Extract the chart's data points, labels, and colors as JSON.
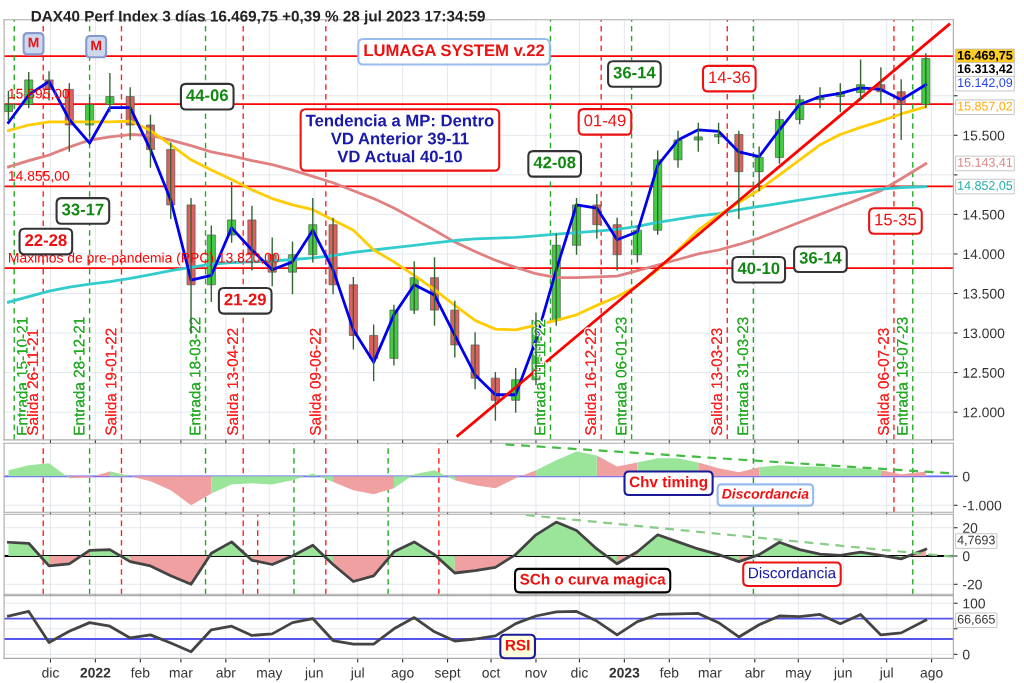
{
  "chart_data": [
    {
      "type": "candlestick",
      "title": "DAX40 Perf Index 3 días 16.469,75 +0,39 % 28 jul 2023 17:34:59",
      "x": [
        "2021-11-02",
        "2021-11-16",
        "2021-11-30",
        "2021-12-14",
        "2021-12-28",
        "2022-01-11",
        "2022-01-25",
        "2022-02-08",
        "2022-02-22",
        "2022-03-08",
        "2022-03-22",
        "2022-04-05",
        "2022-04-19",
        "2022-05-03",
        "2022-05-17",
        "2022-05-31",
        "2022-06-14",
        "2022-06-28",
        "2022-07-12",
        "2022-07-26",
        "2022-08-09",
        "2022-08-23",
        "2022-09-06",
        "2022-09-20",
        "2022-10-04",
        "2022-10-18",
        "2022-11-01",
        "2022-11-15",
        "2022-11-29",
        "2022-12-13",
        "2022-12-27",
        "2023-01-10",
        "2023-01-24",
        "2023-02-07",
        "2023-02-21",
        "2023-03-07",
        "2023-03-21",
        "2023-04-04",
        "2023-04-18",
        "2023-05-02",
        "2023-05-16",
        "2023-05-30",
        "2023-06-13",
        "2023-06-27",
        "2023-07-11",
        "2023-07-28"
      ],
      "ohlc": [
        [
          15800,
          16050,
          15700,
          15890
        ],
        [
          15890,
          16290,
          15850,
          16200
        ],
        [
          16200,
          16300,
          15950,
          16080
        ],
        [
          16080,
          16150,
          15300,
          15630
        ],
        [
          15630,
          15980,
          15500,
          15890
        ],
        [
          15890,
          16280,
          15800,
          15990
        ],
        [
          15990,
          16100,
          15450,
          15630
        ],
        [
          15630,
          15750,
          15100,
          15320
        ],
        [
          15320,
          15400,
          14450,
          14620
        ],
        [
          14620,
          14700,
          13000,
          13610
        ],
        [
          13610,
          14350,
          13400,
          14240
        ],
        [
          14240,
          14900,
          14150,
          14430
        ],
        [
          14430,
          14600,
          13800,
          13990
        ],
        [
          13990,
          14200,
          13600,
          13770
        ],
        [
          13770,
          14150,
          13500,
          13990
        ],
        [
          13990,
          14700,
          13900,
          14370
        ],
        [
          14370,
          14450,
          13500,
          13610
        ],
        [
          13610,
          13700,
          12800,
          12970
        ],
        [
          12970,
          13100,
          12400,
          12680
        ],
        [
          12680,
          13350,
          12600,
          13290
        ],
        [
          13290,
          13900,
          13250,
          13700
        ],
        [
          13700,
          13950,
          13100,
          13290
        ],
        [
          13290,
          13400,
          12700,
          12850
        ],
        [
          12850,
          13000,
          12300,
          12430
        ],
        [
          12430,
          12500,
          11900,
          12150
        ],
        [
          12150,
          12550,
          12000,
          12410
        ],
        [
          12410,
          13250,
          12350,
          13160
        ],
        [
          13160,
          14250,
          13100,
          14110
        ],
        [
          14110,
          14700,
          14000,
          14620
        ],
        [
          14620,
          14750,
          14200,
          14370
        ],
        [
          14370,
          14450,
          13800,
          13990
        ],
        [
          13990,
          14350,
          13900,
          14300
        ],
        [
          14300,
          15300,
          14250,
          15190
        ],
        [
          15190,
          15550,
          15100,
          15440
        ],
        [
          15440,
          15650,
          15300,
          15480
        ],
        [
          15480,
          15650,
          15400,
          15510
        ],
        [
          15510,
          15550,
          14450,
          15040
        ],
        [
          15040,
          15350,
          14800,
          15220
        ],
        [
          15220,
          15800,
          15150,
          15700
        ],
        [
          15700,
          16000,
          15650,
          15950
        ],
        [
          15950,
          16100,
          15850,
          15990
        ],
        [
          15990,
          16150,
          15800,
          16040
        ],
        [
          16040,
          16450,
          15950,
          16140
        ],
        [
          16140,
          16350,
          15900,
          16050
        ],
        [
          16050,
          16200,
          15450,
          15890
        ],
        [
          15890,
          16530,
          15850,
          16470
        ]
      ],
      "colors": [
        "#44cc44",
        "#44cc44",
        "#e06060",
        "#e06060",
        "#44cc44",
        "#44cc44",
        "#e06060",
        "#e06060",
        "#e06060",
        "#e06060",
        "#44cc44",
        "#44cc44",
        "#e06060",
        "#e06060",
        "#44cc44",
        "#44cc44",
        "#e06060",
        "#e06060",
        "#e06060",
        "#44cc44",
        "#44cc44",
        "#e06060",
        "#e06060",
        "#e06060",
        "#e06060",
        "#44cc44",
        "#44cc44",
        "#44cc44",
        "#44cc44",
        "#e06060",
        "#e06060",
        "#44cc44",
        "#44cc44",
        "#44cc44",
        "#44cc44",
        "#44cc44",
        "#e06060",
        "#44cc44",
        "#44cc44",
        "#44cc44",
        "#44cc44",
        "#44cc44",
        "#44cc44",
        "#e06060",
        "#e06060",
        "#44cc44"
      ],
      "series": [
        {
          "type": "line",
          "color": "#e08080",
          "values": [
            15100,
            15180,
            15250,
            15350,
            15440,
            15480,
            15510,
            15500,
            15440,
            15370,
            15290,
            15240,
            15180,
            15130,
            15060,
            14980,
            14900,
            14800,
            14700,
            14580,
            14440,
            14300,
            14150,
            14030,
            13920,
            13830,
            13750,
            13700,
            13700,
            13710,
            13720,
            13790,
            13860,
            13930,
            14000,
            14050,
            14120,
            14200,
            14300,
            14400,
            14500,
            14600,
            14700,
            14800,
            14950,
            15140
          ]
        },
        {
          "type": "line",
          "color": "#33cccc",
          "values": [
            13390,
            13460,
            13530,
            13580,
            13620,
            13650,
            13690,
            13740,
            13790,
            13830,
            13870,
            13890,
            13900,
            13910,
            13930,
            13950,
            13980,
            14020,
            14050,
            14080,
            14110,
            14140,
            14170,
            14190,
            14200,
            14210,
            14230,
            14250,
            14270,
            14290,
            14310,
            14350,
            14400,
            14440,
            14480,
            14510,
            14560,
            14600,
            14640,
            14680,
            14720,
            14760,
            14790,
            14820,
            14840,
            14850
          ]
        },
        {
          "type": "line",
          "color": "#ffcc00",
          "values": [
            15560,
            15630,
            15670,
            15670,
            15670,
            15670,
            15680,
            15560,
            15380,
            15190,
            15060,
            14940,
            14810,
            14700,
            14620,
            14560,
            14430,
            14300,
            14050,
            13900,
            13730,
            13550,
            13350,
            13160,
            13050,
            13040,
            13100,
            13160,
            13230,
            13350,
            13460,
            13600,
            13800,
            14050,
            14300,
            14490,
            14650,
            14810,
            15000,
            15190,
            15380,
            15510,
            15600,
            15680,
            15770,
            15860
          ]
        },
        {
          "type": "line",
          "color": "#0000ee",
          "values": [
            15660,
            16010,
            16180,
            15700,
            15400,
            15850,
            15850,
            15320,
            14680,
            13670,
            13730,
            14330,
            14050,
            13800,
            13900,
            14300,
            13800,
            13040,
            12630,
            13230,
            13610,
            13480,
            12970,
            12470,
            12220,
            12220,
            12910,
            13800,
            14620,
            14580,
            14180,
            14280,
            15120,
            15440,
            15570,
            15550,
            15290,
            15230,
            15570,
            15890,
            15990,
            16030,
            16100,
            16080,
            15950,
            16140
          ]
        },
        {
          "type": "line",
          "color": "#ff0000",
          "x": [
            "2022-09-08",
            "2023-08-13"
          ],
          "values": [
            11700,
            16900
          ]
        }
      ],
      "ylim": [
        11650,
        16960
      ],
      "yticks": [
        {
          "value": 12000,
          "label": "12.000"
        },
        {
          "value": 12500,
          "label": "12.500"
        },
        {
          "value": 13000,
          "label": "13.000"
        },
        {
          "value": 13500,
          "label": "13.500"
        },
        {
          "value": 14000,
          "label": "14.000"
        },
        {
          "value": 14500,
          "label": "14.500"
        },
        {
          "value": 15000,
          "label": null
        },
        {
          "value": 15500,
          "label": "15.500"
        },
        {
          "value": 16000,
          "label": null
        }
      ],
      "xlim": [
        "2021-10-30",
        "2023-08-16"
      ],
      "xticks": [
        "2021-12-01",
        "2022-01-01",
        "2022-02-01",
        "2022-03-01",
        "2022-04-01",
        "2022-05-01",
        "2022-06-01",
        "2022-07-01",
        "2022-08-01",
        "2022-09-01",
        "2022-10-01",
        "2022-11-01",
        "2022-12-01",
        "2023-01-01",
        "2023-02-01",
        "2023-03-01",
        "2023-04-01",
        "2023-05-01",
        "2023-06-01",
        "2023-07-01",
        "2023-08-01"
      ],
      "tick_labels": "y",
      "grid": true,
      "ref_lines": [
        {
          "axis": "y",
          "value": 16500,
          "color": "#ff0000",
          "line_style": "solid"
        },
        {
          "axis": "y",
          "value": 15895,
          "label": "15.895,00",
          "color": "#ff0000",
          "line_style": "solid"
        },
        {
          "axis": "y",
          "value": 14855,
          "label": "14.855,00",
          "color": "#ff0000",
          "line_style": "solid"
        },
        {
          "axis": "y",
          "value": 13820,
          "label": "Máximos de pre-pandemia (PPC) 13.820,00",
          "color": "#ff0000",
          "line_style": "solid"
        },
        {
          "axis": "x",
          "value": "2021-11-06",
          "label": "Entrada 15-10-21",
          "color": "#22aa22",
          "line_style": "dashed"
        },
        {
          "axis": "x",
          "value": "2021-11-26",
          "label": "Salida 26-11-21",
          "color": "#ff2020",
          "line_style": "dashed"
        },
        {
          "axis": "x",
          "value": "2021-12-28",
          "label": "Entrada 28-12-21",
          "color": "#22aa22",
          "line_style": "dashed"
        },
        {
          "axis": "x",
          "value": "2022-01-19",
          "label": "Salida 19-01-22",
          "color": "#ff2020",
          "line_style": "dashed"
        },
        {
          "axis": "x",
          "value": "2022-03-18",
          "label": "Entrada 18-03-22",
          "color": "#22aa22",
          "line_style": "dashed"
        },
        {
          "axis": "x",
          "value": "2022-04-13",
          "label": "Salida 13-04-22",
          "color": "#ff2020",
          "line_style": "dashed"
        },
        {
          "axis": "x",
          "value": "2022-06-09",
          "label": "Salida 09-06-22",
          "color": "#ff2020",
          "line_style": "dashed"
        },
        {
          "axis": "x",
          "value": "2022-11-11",
          "label": "Entrada 11-11-22",
          "color": "#22aa22",
          "line_style": "dashed"
        },
        {
          "axis": "x",
          "value": "2022-12-16",
          "label": "Salida 16-12-22",
          "color": "#ff2020",
          "line_style": "dashed"
        },
        {
          "axis": "x",
          "value": "2023-01-06",
          "label": "Entrada 06-01-23",
          "color": "#22aa22",
          "line_style": "dashed"
        },
        {
          "axis": "x",
          "value": "2023-03-13",
          "label": "Salida 13-03-23",
          "color": "#ff2020",
          "line_style": "dashed"
        },
        {
          "axis": "x",
          "value": "2023-03-31",
          "label": "Entrada 31-03-23",
          "color": "#22aa22",
          "line_style": "dashed"
        },
        {
          "axis": "x",
          "value": "2023-07-06",
          "label": "Salida 06-07-23",
          "color": "#ff2020",
          "line_style": "dashed"
        },
        {
          "axis": "x",
          "value": "2023-07-19",
          "label": "Entrada 19-07-23",
          "color": "#22aa22",
          "line_style": "dashed"
        }
      ],
      "annotations": [
        "LUMAGA SYSTEM v.22",
        "Tendencia a MP: Dentro\nVD Anterior 39-11\nVD Actual 40-10",
        "44-06",
        "33-17",
        "22-28",
        "21-29",
        "36-14",
        "01-49",
        "14-36",
        "42-08",
        "40-10",
        "36-14",
        "15-35",
        "M",
        "M",
        "16.469,75",
        "16.313,42",
        "16.142,09",
        "15.857,02",
        "15.143,41",
        "14.852,05"
      ]
    },
    {
      "type": "area",
      "x": [
        "2021-11-02",
        "2021-11-16",
        "2021-11-30",
        "2021-12-14",
        "2021-12-28",
        "2022-01-11",
        "2022-01-25",
        "2022-02-08",
        "2022-02-22",
        "2022-03-08",
        "2022-03-22",
        "2022-04-05",
        "2022-04-19",
        "2022-05-03",
        "2022-05-17",
        "2022-05-31",
        "2022-06-14",
        "2022-06-28",
        "2022-07-12",
        "2022-07-26",
        "2022-08-09",
        "2022-08-23",
        "2022-09-06",
        "2022-09-20",
        "2022-10-04",
        "2022-10-18",
        "2022-11-01",
        "2022-11-15",
        "2022-11-29",
        "2022-12-13",
        "2022-12-27",
        "2023-01-10",
        "2023-01-24",
        "2023-02-07",
        "2023-02-21",
        "2023-03-07",
        "2023-03-21",
        "2023-04-04",
        "2023-04-18",
        "2023-05-02",
        "2023-05-16",
        "2023-05-30",
        "2023-06-13",
        "2023-06-27",
        "2023-07-11",
        "2023-07-28"
      ],
      "series": [
        {
          "type": "area",
          "color": "#f0a0a0",
          "values": [
            null,
            null,
            null,
            -70,
            -40,
            170,
            0,
            -170,
            -480,
            -1000,
            -590,
            null,
            null,
            null,
            null,
            null,
            -200,
            -480,
            -620,
            -410,
            null,
            null,
            -140,
            -310,
            -410,
            -70,
            210,
            null,
            null,
            720,
            340,
            480,
            null,
            null,
            480,
            280,
            140,
            310,
            null,
            null,
            null,
            null,
            null,
            210,
            70,
            170
          ]
        },
        {
          "type": "area",
          "color": "#9be59b",
          "values": [
            210,
            380,
            450,
            -70,
            null,
            170,
            0,
            null,
            null,
            null,
            -590,
            -280,
            -240,
            -280,
            -140,
            100,
            -200,
            null,
            null,
            -410,
            70,
            210,
            -140,
            null,
            null,
            null,
            210,
            550,
            860,
            720,
            null,
            480,
            620,
            620,
            480,
            null,
            null,
            310,
            380,
            340,
            340,
            280,
            280,
            210,
            null,
            null
          ]
        },
        {
          "type": "line",
          "color": "#44bb44",
          "line_style": "dashed",
          "x": [
            "2022-10-11",
            "2023-08-16"
          ],
          "values": [
            1100,
            100
          ]
        }
      ],
      "ylim": [
        -1240,
        1140
      ],
      "yticks": [
        {
          "value": 0,
          "label": "0"
        },
        {
          "value": -1000,
          "label": "-1.000"
        }
      ],
      "xlim": [
        "2021-10-30",
        "2023-08-16"
      ],
      "xticks": [
        "2021-12-01",
        "2022-01-01",
        "2022-02-01",
        "2022-03-01",
        "2022-04-01",
        "2022-05-01",
        "2022-06-01",
        "2022-07-01",
        "2022-08-01",
        "2022-09-01",
        "2022-10-01",
        "2022-11-01",
        "2022-12-01",
        "2023-01-01",
        "2023-02-01",
        "2023-03-01",
        "2023-04-01",
        "2023-05-01",
        "2023-06-01",
        "2023-07-01",
        "2023-08-01"
      ],
      "tick_labels": "y",
      "grid": true,
      "ref_lines": [
        {
          "axis": "y",
          "value": 0,
          "color": "#6666ff",
          "line_style": "solid"
        },
        {
          "axis": "x",
          "value": "2021-11-26",
          "color": "#ff2020",
          "line_style": "dashed"
        },
        {
          "axis": "x",
          "value": "2021-12-28",
          "color": "#22aa22",
          "line_style": "dashed"
        },
        {
          "axis": "x",
          "value": "2022-01-19",
          "color": "#ff2020",
          "line_style": "dashed"
        },
        {
          "axis": "x",
          "value": "2022-03-18",
          "color": "#22aa22",
          "line_style": "dashed"
        },
        {
          "axis": "x",
          "value": "2022-04-13",
          "color": "#ff2020",
          "line_style": "dashed"
        },
        {
          "axis": "x",
          "value": "2022-05-18",
          "color": "#22aa22",
          "line_style": "dashed"
        },
        {
          "axis": "x",
          "value": "2022-06-09",
          "color": "#ff2020",
          "line_style": "dashed"
        },
        {
          "axis": "x",
          "value": "2022-07-22",
          "color": "#22aa22",
          "line_style": "dashed"
        },
        {
          "axis": "x",
          "value": "2022-08-26",
          "color": "#ff2020",
          "line_style": "dashed"
        },
        {
          "axis": "x",
          "value": "2023-03-31",
          "color": "#22aa22",
          "line_style": "dashed"
        },
        {
          "axis": "x",
          "value": "2023-07-06",
          "color": "#ff2020",
          "line_style": "dashed"
        },
        {
          "axis": "x",
          "value": "2023-07-19",
          "color": "#22aa22",
          "line_style": "dashed"
        }
      ],
      "annotations": [
        "Chv timing",
        "Discordancia"
      ]
    },
    {
      "type": "area",
      "x": [
        "2021-11-02",
        "2021-11-16",
        "2021-11-30",
        "2021-12-14",
        "2021-12-28",
        "2022-01-11",
        "2022-01-25",
        "2022-02-08",
        "2022-02-22",
        "2022-03-08",
        "2022-03-22",
        "2022-04-05",
        "2022-04-19",
        "2022-05-03",
        "2022-05-17",
        "2022-05-31",
        "2022-06-14",
        "2022-06-28",
        "2022-07-12",
        "2022-07-26",
        "2022-08-09",
        "2022-08-23",
        "2022-09-06",
        "2022-09-20",
        "2022-10-04",
        "2022-10-18",
        "2022-11-01",
        "2022-11-15",
        "2022-11-29",
        "2022-12-13",
        "2022-12-27",
        "2023-01-10",
        "2023-01-24",
        "2023-02-07",
        "2023-02-21",
        "2023-03-07",
        "2023-03-21",
        "2023-04-04",
        "2023-04-18",
        "2023-05-02",
        "2023-05-16",
        "2023-05-30",
        "2023-06-13",
        "2023-06-27",
        "2023-07-11",
        "2023-07-28"
      ],
      "series": [
        {
          "type": "area",
          "color": "#9be59b",
          "values": [
            9.7,
            9.0,
            -7,
            null,
            4,
            4.5,
            -4,
            null,
            null,
            null,
            2,
            10,
            -3,
            null,
            0,
            7.6,
            -6,
            null,
            null,
            3,
            10,
            1,
            -12,
            null,
            null,
            1,
            15,
            24,
            18,
            5,
            -5.5,
            3,
            15,
            10,
            5,
            1,
            -4,
            1,
            9.7,
            4.5,
            1.4,
            0.5,
            2.8,
            0.5,
            -2,
            4.8
          ]
        },
        {
          "type": "area",
          "color": "#f0a0a0",
          "values": [
            null,
            null,
            -7,
            -5.5,
            4,
            null,
            -4,
            -7,
            -14,
            -20,
            2,
            null,
            -3,
            -6,
            0,
            null,
            -6,
            -18,
            -14,
            3,
            null,
            null,
            -12,
            -10.4,
            -8,
            1,
            null,
            null,
            null,
            null,
            -5.5,
            3,
            null,
            null,
            null,
            null,
            -4,
            1,
            null,
            null,
            null,
            null,
            null,
            null,
            -2,
            4.8
          ]
        },
        {
          "type": "line",
          "color": "#444444",
          "values": [
            9.7,
            9.0,
            -7,
            -5.5,
            4,
            4.5,
            -4,
            -7,
            -14,
            -20,
            2,
            10,
            -3,
            -6,
            0,
            7.6,
            -6,
            -18,
            -14,
            3,
            10,
            1,
            -12,
            -10.4,
            -8,
            1,
            15,
            24,
            18,
            5,
            -5.5,
            3,
            15,
            10,
            5,
            1,
            -4,
            1,
            9.7,
            4.5,
            1.4,
            0.5,
            2.8,
            0.5,
            -2,
            4.8
          ]
        },
        {
          "type": "line",
          "color": "#88cc88",
          "line_style": "dashed",
          "x": [
            "2022-10-25",
            "2023-08-16"
          ],
          "values": [
            29,
            -0.5
          ]
        }
      ],
      "ylim": [
        -27,
        29.5
      ],
      "yticks": [
        20,
        0,
        {
          "value": -20,
          "label": "-20"
        }
      ],
      "xlim": [
        "2021-10-30",
        "2023-08-16"
      ],
      "xticks": [
        "2021-12-01",
        "2022-01-01",
        "2022-02-01",
        "2022-03-01",
        "2022-04-01",
        "2022-05-01",
        "2022-06-01",
        "2022-07-01",
        "2022-08-01",
        "2022-09-01",
        "2022-10-01",
        "2022-11-01",
        "2022-12-01",
        "2023-01-01",
        "2023-02-01",
        "2023-03-01",
        "2023-04-01",
        "2023-05-01",
        "2023-06-01",
        "2023-07-01",
        "2023-08-01"
      ],
      "tick_labels": "y",
      "grid": true,
      "ref_lines": [
        {
          "axis": "y",
          "value": 0,
          "color": "#000000",
          "line_style": "solid"
        },
        {
          "axis": "x",
          "value": "2021-11-26",
          "color": "#ff2020",
          "line_style": "dashed"
        },
        {
          "axis": "x",
          "value": "2021-12-28",
          "color": "#22aa22",
          "line_style": "dashed"
        },
        {
          "axis": "x",
          "value": "2022-01-19",
          "color": "#ff2020",
          "line_style": "dashed"
        },
        {
          "axis": "x",
          "value": "2022-03-18",
          "color": "#22aa22",
          "line_style": "dashed"
        },
        {
          "axis": "x",
          "value": "2022-04-13",
          "color": "#ff2020",
          "line_style": "dashed"
        },
        {
          "axis": "x",
          "value": "2022-04-23",
          "color": "#ff2020",
          "line_style": "dashed"
        },
        {
          "axis": "x",
          "value": "2022-05-18",
          "color": "#22aa22",
          "line_style": "dashed"
        },
        {
          "axis": "x",
          "value": "2022-06-09",
          "color": "#ff2020",
          "line_style": "dashed"
        },
        {
          "axis": "x",
          "value": "2022-07-22",
          "color": "#22aa22",
          "line_style": "dashed"
        },
        {
          "axis": "x",
          "value": "2022-08-26",
          "color": "#ff2020",
          "line_style": "dashed"
        },
        {
          "axis": "x",
          "value": "2023-03-31",
          "color": "#22aa22",
          "line_style": "dashed"
        },
        {
          "axis": "x",
          "value": "2023-07-19",
          "color": "#22aa22",
          "line_style": "dashed"
        }
      ],
      "annotations": [
        "SCh o curva magica",
        "Discordancia",
        "4,7693"
      ]
    },
    {
      "type": "line",
      "x": [
        "2021-11-02",
        "2021-11-16",
        "2021-11-30",
        "2021-12-14",
        "2021-12-28",
        "2022-01-11",
        "2022-01-25",
        "2022-02-08",
        "2022-02-22",
        "2022-03-08",
        "2022-03-22",
        "2022-04-05",
        "2022-04-19",
        "2022-05-03",
        "2022-05-17",
        "2022-05-31",
        "2022-06-14",
        "2022-06-28",
        "2022-07-12",
        "2022-07-26",
        "2022-08-09",
        "2022-08-23",
        "2022-09-06",
        "2022-09-20",
        "2022-10-04",
        "2022-10-18",
        "2022-11-01",
        "2022-11-15",
        "2022-11-29",
        "2022-12-13",
        "2022-12-27",
        "2023-01-10",
        "2023-01-24",
        "2023-02-07",
        "2023-02-21",
        "2023-03-07",
        "2023-03-21",
        "2023-04-04",
        "2023-04-18",
        "2023-05-02",
        "2023-05-16",
        "2023-05-30",
        "2023-06-13",
        "2023-06-27",
        "2023-07-11",
        "2023-07-28"
      ],
      "series": [
        {
          "type": "line",
          "color": "#444444",
          "values": [
            75,
            84,
            23,
            45,
            62,
            55,
            32,
            38,
            22,
            5,
            48,
            55,
            37,
            40,
            62,
            70,
            27,
            20,
            20,
            50,
            72,
            44,
            26,
            30,
            36,
            60,
            75,
            83,
            84,
            65,
            38,
            64,
            78,
            79,
            80,
            62,
            34,
            58,
            75,
            74,
            78,
            60,
            78,
            38,
            42,
            67
          ]
        }
      ],
      "ylim": [
        -8,
        115
      ],
      "yticks": [
        100,
        {
          "value": 50,
          "label": null
        },
        0
      ],
      "xlim": [
        "2021-10-30",
        "2023-08-16"
      ],
      "xticks": [
        {
          "value": "2021-12-01",
          "label": "dic"
        },
        {
          "value": "2022-01-01",
          "label": "2022"
        },
        {
          "value": "2022-02-01",
          "label": "feb"
        },
        {
          "value": "2022-03-01",
          "label": "mar"
        },
        {
          "value": "2022-04-01",
          "label": "abr"
        },
        {
          "value": "2022-05-01",
          "label": "may"
        },
        {
          "value": "2022-06-01",
          "label": "jun"
        },
        {
          "value": "2022-07-01",
          "label": "jul"
        },
        {
          "value": "2022-08-01",
          "label": "ago"
        },
        {
          "value": "2022-09-01",
          "label": "sept"
        },
        {
          "value": "2022-10-01",
          "label": "oct"
        },
        {
          "value": "2022-11-01",
          "label": "nov"
        },
        {
          "value": "2022-12-01",
          "label": "dic"
        },
        {
          "value": "2023-01-01",
          "label": "2023"
        },
        {
          "value": "2023-02-01",
          "label": "feb"
        },
        {
          "value": "2023-03-01",
          "label": "mar"
        },
        {
          "value": "2023-04-01",
          "label": "abr"
        },
        {
          "value": "2023-05-01",
          "label": "may"
        },
        {
          "value": "2023-06-01",
          "label": "jun"
        },
        {
          "value": "2023-07-01",
          "label": "jul"
        },
        {
          "value": "2023-08-01",
          "label": "ago"
        }
      ],
      "grid": true,
      "ref_lines": [
        {
          "axis": "y",
          "value": 70,
          "color": "#5555ee",
          "line_style": "solid"
        },
        {
          "axis": "y",
          "value": 30,
          "color": "#5555ee",
          "line_style": "solid"
        }
      ],
      "annotations": [
        "RSI",
        "66,665"
      ]
    }
  ]
}
